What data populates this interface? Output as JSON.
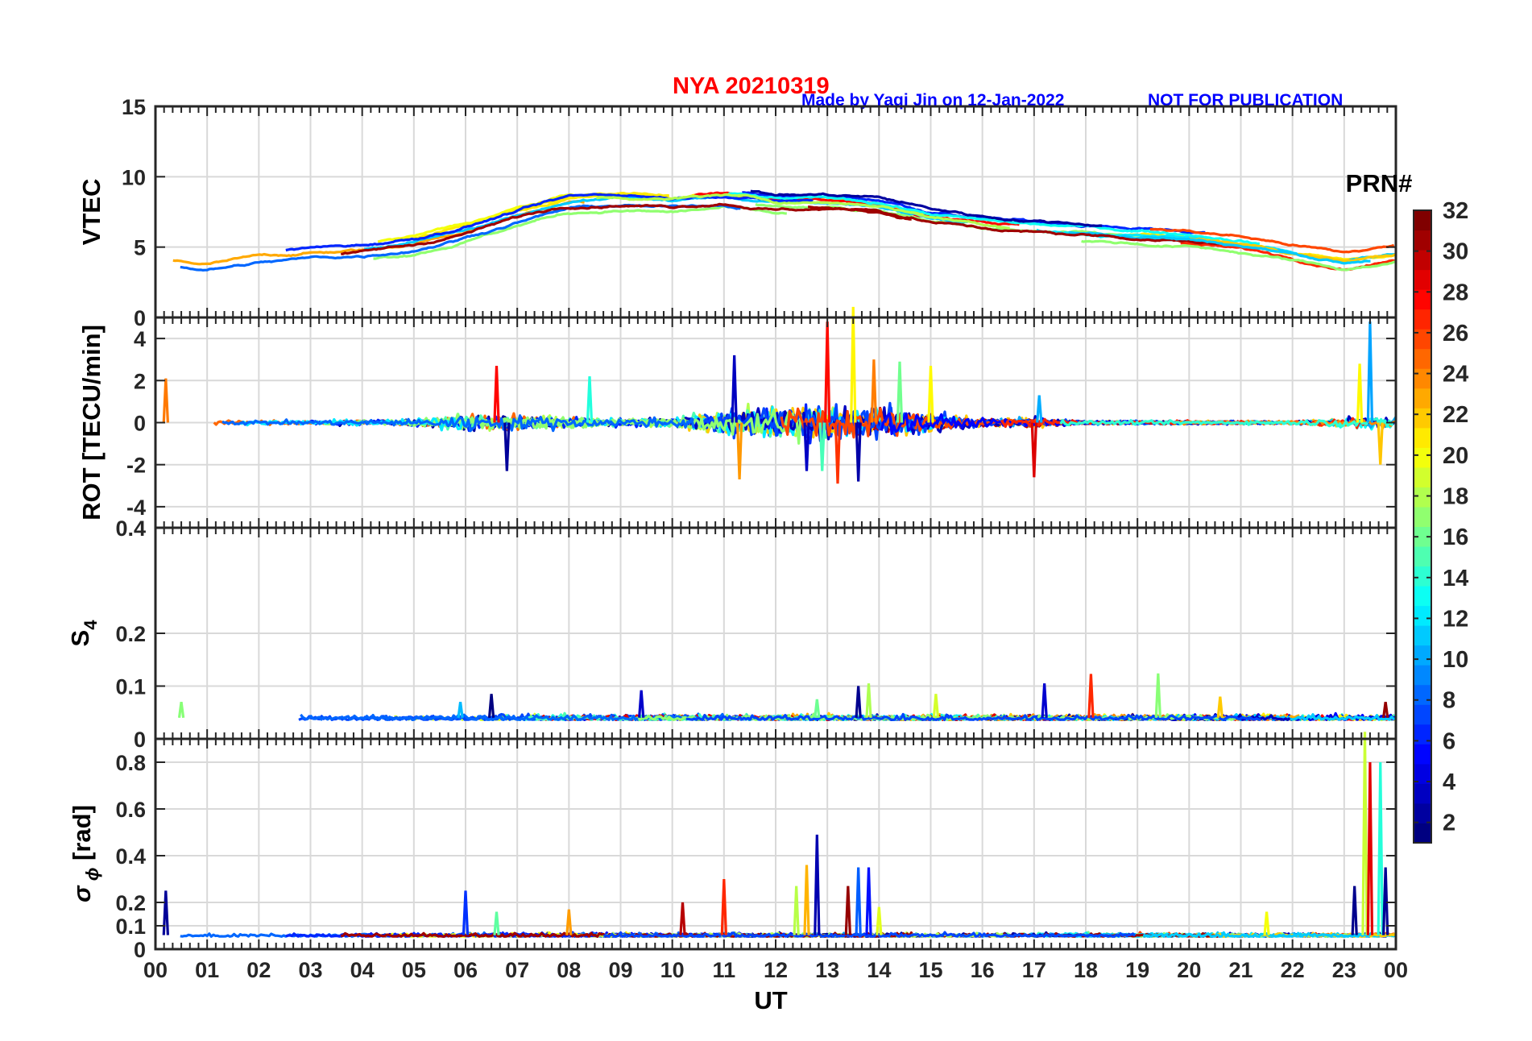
{
  "header": {
    "station_date": "NYA   20210319",
    "credit": "Made by Yaqi Jin on 12-Jan-2022",
    "notice": "NOT FOR PUBLICATION"
  },
  "chart_data": [
    {
      "id": "vtec",
      "type": "line",
      "ylabel": "VTEC",
      "ylim": [
        0,
        15
      ],
      "yticks": [
        0,
        5,
        10,
        15
      ],
      "ytick_labels": [
        "0",
        "5",
        "10",
        "15"
      ],
      "grid": true,
      "series_summary": "multiple PRN traces, colored by PRN number; envelope approx (hour, VTEC)",
      "envelope": [
        [
          0,
          4.2
        ],
        [
          1,
          3.8
        ],
        [
          2,
          4.3
        ],
        [
          3,
          4.6
        ],
        [
          4,
          4.8
        ],
        [
          5,
          5.3
        ],
        [
          6,
          6.2
        ],
        [
          7,
          7.3
        ],
        [
          8,
          8.2
        ],
        [
          9,
          8.4
        ],
        [
          10,
          8.2
        ],
        [
          11,
          8.5
        ],
        [
          12,
          8.0
        ],
        [
          13,
          8.0
        ],
        [
          14,
          7.8
        ],
        [
          15,
          7.0
        ],
        [
          16,
          6.5
        ],
        [
          17,
          6.2
        ],
        [
          18,
          6.0
        ],
        [
          19,
          5.8
        ],
        [
          20,
          5.6
        ],
        [
          21,
          5.2
        ],
        [
          22,
          4.6
        ],
        [
          23,
          4.0
        ],
        [
          24,
          4.5
        ]
      ]
    },
    {
      "id": "rot",
      "type": "line",
      "ylabel": "ROT [TECU/min]",
      "ylim": [
        -5,
        5
      ],
      "yticks": [
        -4,
        -2,
        0,
        2,
        4
      ],
      "ytick_labels": [
        "-4",
        "-2",
        "0",
        "2",
        "4"
      ],
      "grid": true,
      "amplitude": [
        [
          0,
          0.6
        ],
        [
          1,
          0.3
        ],
        [
          3,
          0.4
        ],
        [
          5,
          0.5
        ],
        [
          6,
          1.5
        ],
        [
          7,
          1.2
        ],
        [
          8,
          1.0
        ],
        [
          9,
          0.7
        ],
        [
          10,
          0.8
        ],
        [
          11,
          2.0
        ],
        [
          12,
          2.8
        ],
        [
          13,
          3.0
        ],
        [
          14,
          2.6
        ],
        [
          15,
          1.6
        ],
        [
          16,
          0.6
        ],
        [
          17,
          0.8
        ],
        [
          18,
          0.3
        ],
        [
          20,
          0.3
        ],
        [
          22,
          0.3
        ],
        [
          23,
          0.8
        ],
        [
          24,
          1.0
        ]
      ],
      "spikes": [
        [
          0.2,
          2.1
        ],
        [
          6.6,
          2.7
        ],
        [
          6.8,
          -2.3
        ],
        [
          8.4,
          2.2
        ],
        [
          11.2,
          3.2
        ],
        [
          11.3,
          -2.7
        ],
        [
          12.6,
          -2.3
        ],
        [
          12.9,
          -2.3
        ],
        [
          13.0,
          4.8
        ],
        [
          13.2,
          -2.9
        ],
        [
          13.5,
          5.5
        ],
        [
          13.6,
          -2.8
        ],
        [
          13.9,
          3.0
        ],
        [
          14.4,
          2.9
        ],
        [
          15.0,
          2.7
        ],
        [
          17.0,
          -2.6
        ],
        [
          17.1,
          1.3
        ],
        [
          23.3,
          2.8
        ],
        [
          23.5,
          4.8
        ],
        [
          23.7,
          -2.0
        ]
      ]
    },
    {
      "id": "s4",
      "type": "line",
      "ylabel": "S4",
      "ylim": [
        0,
        0.4
      ],
      "yticks": [
        0,
        0.1,
        0.2,
        0.4
      ],
      "ytick_labels": [
        "0",
        "0.1",
        "0.2",
        "0.4"
      ],
      "grid": true,
      "baseline": 0.04,
      "spikes": [
        [
          0.5,
          0.07
        ],
        [
          5.9,
          0.07
        ],
        [
          6.5,
          0.085
        ],
        [
          9.4,
          0.092
        ],
        [
          12.8,
          0.075
        ],
        [
          13.6,
          0.1
        ],
        [
          13.8,
          0.105
        ],
        [
          15.1,
          0.085
        ],
        [
          17.2,
          0.105
        ],
        [
          18.1,
          0.123
        ],
        [
          19.4,
          0.124
        ],
        [
          20.6,
          0.08
        ],
        [
          23.8,
          0.07
        ]
      ]
    },
    {
      "id": "sigma_phi",
      "type": "line",
      "ylabel": "σ ϕ [rad]",
      "ylim": [
        0,
        0.9
      ],
      "yticks": [
        0,
        0.1,
        0.2,
        0.4,
        0.6,
        0.8
      ],
      "ytick_labels": [
        "0",
        "0.1",
        "0.2",
        "0.4",
        "0.6",
        "0.8"
      ],
      "grid": true,
      "baseline": 0.06,
      "spikes": [
        [
          0.2,
          0.25
        ],
        [
          6.0,
          0.25
        ],
        [
          6.6,
          0.16
        ],
        [
          8.0,
          0.17
        ],
        [
          10.2,
          0.2
        ],
        [
          11.0,
          0.3
        ],
        [
          12.4,
          0.27
        ],
        [
          12.6,
          0.36
        ],
        [
          12.8,
          0.49
        ],
        [
          13.4,
          0.27
        ],
        [
          13.6,
          0.35
        ],
        [
          13.8,
          0.35
        ],
        [
          14.0,
          0.18
        ],
        [
          21.5,
          0.16
        ],
        [
          23.2,
          0.27
        ],
        [
          23.4,
          0.93
        ],
        [
          23.5,
          0.8
        ],
        [
          23.7,
          0.8
        ],
        [
          23.8,
          0.35
        ]
      ]
    }
  ],
  "xaxis": {
    "label": "UT",
    "ticks": [
      "00",
      "01",
      "02",
      "03",
      "04",
      "05",
      "06",
      "07",
      "08",
      "09",
      "10",
      "11",
      "12",
      "13",
      "14",
      "15",
      "16",
      "17",
      "18",
      "19",
      "20",
      "21",
      "22",
      "23",
      "00"
    ]
  },
  "colorbar": {
    "title": "PRN#",
    "range": [
      1,
      32
    ],
    "ticks": [
      "2",
      "4",
      "6",
      "8",
      "10",
      "12",
      "14",
      "16",
      "18",
      "20",
      "22",
      "24",
      "26",
      "28",
      "30",
      "32"
    ],
    "colormap": "jet"
  }
}
